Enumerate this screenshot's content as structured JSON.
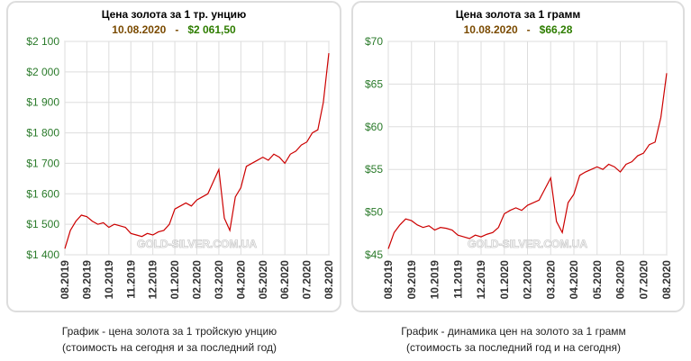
{
  "chart_data": [
    {
      "type": "line",
      "title": "Цена золота за 1 тр. унцию",
      "date": "10.08.2020",
      "separator": "-",
      "price": "$2 061,50",
      "watermark": "GOLD-SILVER.COM.UA",
      "caption": [
        "График - цена золота за 1 тройскую унцию",
        "(стоимость на сегодня и за последний год)"
      ],
      "categories": [
        "08.2019",
        null,
        null,
        null,
        "09.2019",
        null,
        null,
        null,
        "10.2019",
        null,
        null,
        null,
        "11.2019",
        null,
        null,
        null,
        "12.2019",
        null,
        null,
        null,
        "01.2020",
        null,
        null,
        null,
        "02.2020",
        null,
        null,
        null,
        "03.2020",
        null,
        null,
        null,
        "04.2020",
        null,
        null,
        null,
        "05.2020",
        null,
        null,
        null,
        "06.2020",
        null,
        null,
        null,
        "07.2020",
        null,
        null,
        null,
        "08.2020"
      ],
      "series": [
        {
          "name": "Цена",
          "color": "#cc0000",
          "values": [
            1420,
            1480,
            1510,
            1530,
            1525,
            1510,
            1500,
            1505,
            1490,
            1500,
            1495,
            1490,
            1470,
            1465,
            1460,
            1470,
            1465,
            1475,
            1480,
            1500,
            1550,
            1560,
            1570,
            1560,
            1580,
            1590,
            1600,
            1640,
            1680,
            1520,
            1480,
            1590,
            1620,
            1690,
            1700,
            1710,
            1720,
            1710,
            1730,
            1720,
            1700,
            1730,
            1740,
            1760,
            1770,
            1800,
            1810,
            1900,
            2061.5
          ]
        }
      ],
      "ylim": [
        1400,
        2100
      ],
      "yticks": [
        {
          "value": 1400,
          "label": "$1 400"
        },
        {
          "value": 1500,
          "label": "$1 500"
        },
        {
          "value": 1600,
          "label": "$1 600"
        },
        {
          "value": 1700,
          "label": "$1 700"
        },
        {
          "value": 1800,
          "label": "$1 800"
        },
        {
          "value": 1900,
          "label": "$1 900"
        },
        {
          "value": 2000,
          "label": "$2 000"
        },
        {
          "value": 2100,
          "label": "$2 100"
        }
      ],
      "grid": true
    },
    {
      "type": "line",
      "title": "Цена золота за 1 грамм",
      "date": "10.08.2020",
      "separator": "-",
      "price": "$66,28",
      "watermark": "GOLD-SILVER.COM.UA",
      "caption": [
        "График - динамика цен на золото за 1 грамм",
        "(стоимость за последний год и на сегодня)"
      ],
      "categories": [
        "08.2019",
        null,
        null,
        null,
        "09.2019",
        null,
        null,
        null,
        "10.2019",
        null,
        null,
        null,
        "11.2019",
        null,
        null,
        null,
        "12.2019",
        null,
        null,
        null,
        "01.2020",
        null,
        null,
        null,
        "02.2020",
        null,
        null,
        null,
        "03.2020",
        null,
        null,
        null,
        "04.2020",
        null,
        null,
        null,
        "05.2020",
        null,
        null,
        null,
        "06.2020",
        null,
        null,
        null,
        "07.2020",
        null,
        null,
        null,
        "08.2020"
      ],
      "series": [
        {
          "name": "Цена",
          "color": "#cc0000",
          "values": [
            45.7,
            47.6,
            48.5,
            49.2,
            49.0,
            48.5,
            48.2,
            48.4,
            47.9,
            48.2,
            48.1,
            47.9,
            47.3,
            47.1,
            46.9,
            47.3,
            47.1,
            47.4,
            47.6,
            48.2,
            49.8,
            50.2,
            50.5,
            50.2,
            50.8,
            51.1,
            51.4,
            52.7,
            54.0,
            48.9,
            47.6,
            51.1,
            52.1,
            54.3,
            54.7,
            55.0,
            55.3,
            55.0,
            55.6,
            55.3,
            54.7,
            55.6,
            55.9,
            56.6,
            56.9,
            57.9,
            58.2,
            61.1,
            66.28
          ]
        }
      ],
      "ylim": [
        45,
        70
      ],
      "yticks": [
        {
          "value": 45,
          "label": "$45"
        },
        {
          "value": 50,
          "label": "$50"
        },
        {
          "value": 55,
          "label": "$55"
        },
        {
          "value": 60,
          "label": "$60"
        },
        {
          "value": 65,
          "label": "$65"
        },
        {
          "value": 70,
          "label": "$70"
        }
      ],
      "grid": true
    }
  ]
}
